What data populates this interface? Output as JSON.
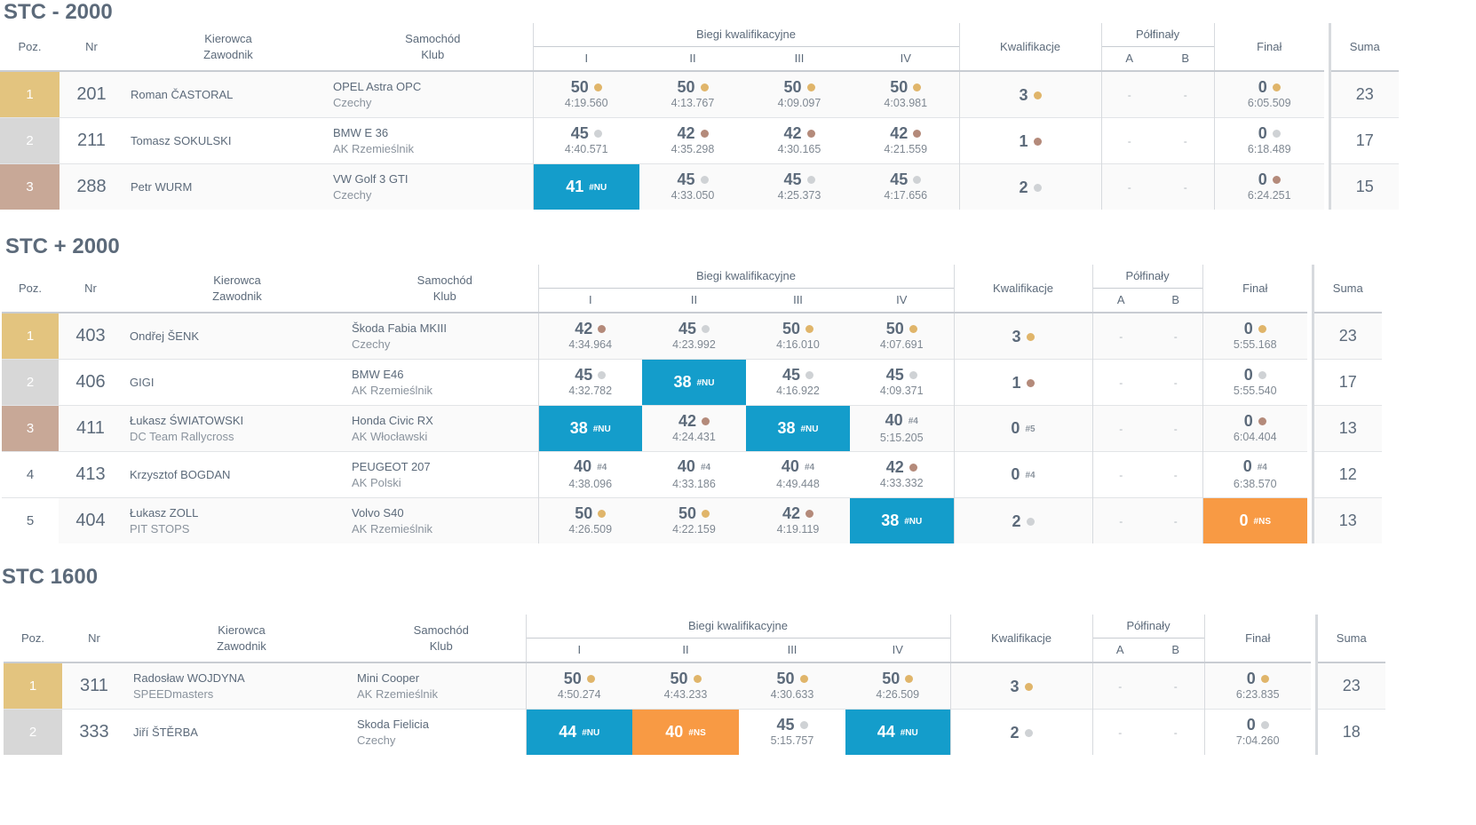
{
  "headers": {
    "poz": "Poz.",
    "nr": "Nr",
    "driver1": "Kierowca",
    "driver2": "Zawodnik",
    "car1": "Samochód",
    "car2": "Klub",
    "heats": "Biegi kwalifikacyjne",
    "heat_cols": [
      "I",
      "II",
      "III",
      "IV"
    ],
    "qual": "Kwalifikacje",
    "semi": "Półfinały",
    "semi_cols": [
      "A",
      "B"
    ],
    "final": "Finał",
    "sum": "Suma"
  },
  "sections": [
    {
      "title": "STC - 2000",
      "rows": [
        {
          "poz": "1",
          "cls": "p1",
          "nr": "201",
          "driver": "Roman ČASTORAL",
          "driver2": "",
          "car": "OPEL Astra OPC",
          "club": "Czechy",
          "heats": [
            {
              "p": "50",
              "t": "4:19.560",
              "m": "gold"
            },
            {
              "p": "50",
              "t": "4:13.767",
              "m": "gold"
            },
            {
              "p": "50",
              "t": "4:09.097",
              "m": "gold"
            },
            {
              "p": "50",
              "t": "4:03.981",
              "m": "gold"
            }
          ],
          "qual": {
            "p": "3",
            "m": "gold"
          },
          "semiA": "-",
          "semiB": "-",
          "final": {
            "p": "0",
            "t": "6:05.509",
            "m": "gold"
          },
          "sum": "23"
        },
        {
          "poz": "2",
          "cls": "p2",
          "nr": "211",
          "driver": "Tomasz SOKULSKI",
          "driver2": "",
          "car": "BMW E 36",
          "club": "AK Rzemieślnik",
          "heats": [
            {
              "p": "45",
              "t": "4:40.571",
              "m": "silver"
            },
            {
              "p": "42",
              "t": "4:35.298",
              "m": "bronze"
            },
            {
              "p": "42",
              "t": "4:30.165",
              "m": "bronze"
            },
            {
              "p": "42",
              "t": "4:21.559",
              "m": "bronze"
            }
          ],
          "qual": {
            "p": "1",
            "m": "bronze"
          },
          "semiA": "-",
          "semiB": "-",
          "final": {
            "p": "0",
            "t": "6:18.489",
            "m": "silver"
          },
          "sum": "17"
        },
        {
          "poz": "3",
          "cls": "p3",
          "nr": "288",
          "driver": "Petr WURM",
          "driver2": "",
          "car": "VW Golf 3 GTI",
          "club": "Czechy",
          "heats": [
            {
              "p": "41",
              "t": "",
              "tag": "#NU",
              "hl": "nu"
            },
            {
              "p": "45",
              "t": "4:33.050",
              "m": "silver"
            },
            {
              "p": "45",
              "t": "4:25.373",
              "m": "silver"
            },
            {
              "p": "45",
              "t": "4:17.656",
              "m": "silver"
            }
          ],
          "qual": {
            "p": "2",
            "m": "silver"
          },
          "semiA": "-",
          "semiB": "-",
          "final": {
            "p": "0",
            "t": "6:24.251",
            "m": "bronze"
          },
          "sum": "15"
        }
      ]
    },
    {
      "title": "STC + 2000",
      "rows": [
        {
          "poz": "1",
          "cls": "p1",
          "nr": "403",
          "driver": "Ondřej ŠENK",
          "driver2": "",
          "car": "Škoda Fabia MKIII",
          "club": "Czechy",
          "heats": [
            {
              "p": "42",
              "t": "4:34.964",
              "m": "bronze"
            },
            {
              "p": "45",
              "t": "4:23.992",
              "m": "silver"
            },
            {
              "p": "50",
              "t": "4:16.010",
              "m": "gold"
            },
            {
              "p": "50",
              "t": "4:07.691",
              "m": "gold"
            }
          ],
          "qual": {
            "p": "3",
            "m": "gold"
          },
          "semiA": "-",
          "semiB": "-",
          "final": {
            "p": "0",
            "t": "5:55.168",
            "m": "gold"
          },
          "sum": "23"
        },
        {
          "poz": "2",
          "cls": "p2",
          "nr": "406",
          "driver": "GIGI",
          "driver2": "",
          "car": "BMW E46",
          "club": "AK Rzemieślnik",
          "heats": [
            {
              "p": "45",
              "t": "4:32.782",
              "m": "silver"
            },
            {
              "p": "38",
              "t": "",
              "tag": "#NU",
              "hl": "nu"
            },
            {
              "p": "45",
              "t": "4:16.922",
              "m": "silver"
            },
            {
              "p": "45",
              "t": "4:09.371",
              "m": "silver"
            }
          ],
          "qual": {
            "p": "1",
            "m": "bronze"
          },
          "semiA": "-",
          "semiB": "-",
          "final": {
            "p": "0",
            "t": "5:55.540",
            "m": "silver"
          },
          "sum": "17"
        },
        {
          "poz": "3",
          "cls": "p3",
          "nr": "411",
          "driver": "Łukasz ŚWIATOWSKI",
          "driver2": "DC Team Rallycross",
          "car": "Honda Civic RX",
          "club": "AK Włocławski",
          "heats": [
            {
              "p": "38",
              "t": "",
              "tag": "#NU",
              "hl": "nu"
            },
            {
              "p": "42",
              "t": "4:24.431",
              "m": "bronze"
            },
            {
              "p": "38",
              "t": "",
              "tag": "#NU",
              "hl": "nu"
            },
            {
              "p": "40",
              "t": "5:15.205",
              "tag": "#4"
            }
          ],
          "qual": {
            "p": "0",
            "tag": "#5"
          },
          "semiA": "-",
          "semiB": "-",
          "final": {
            "p": "0",
            "t": "6:04.404",
            "m": "bronze"
          },
          "sum": "13"
        },
        {
          "poz": "4",
          "cls": "pn",
          "nr": "413",
          "driver": "Krzysztof BOGDAN",
          "driver2": "",
          "car": "PEUGEOT 207",
          "club": "AK Polski",
          "heats": [
            {
              "p": "40",
              "t": "4:38.096",
              "tag": "#4"
            },
            {
              "p": "40",
              "t": "4:33.186",
              "tag": "#4"
            },
            {
              "p": "40",
              "t": "4:49.448",
              "tag": "#4"
            },
            {
              "p": "42",
              "t": "4:33.332",
              "m": "bronze"
            }
          ],
          "qual": {
            "p": "0",
            "tag": "#4"
          },
          "semiA": "-",
          "semiB": "-",
          "final": {
            "p": "0",
            "t": "6:38.570",
            "tag": "#4"
          },
          "sum": "12"
        },
        {
          "poz": "5",
          "cls": "pn",
          "nr": "404",
          "driver": "Łukasz ZOLL",
          "driver2": "PIT STOPS",
          "car": "Volvo S40",
          "club": "AK Rzemieślnik",
          "heats": [
            {
              "p": "50",
              "t": "4:26.509",
              "m": "gold"
            },
            {
              "p": "50",
              "t": "4:22.159",
              "m": "gold"
            },
            {
              "p": "42",
              "t": "4:19.119",
              "m": "bronze"
            },
            {
              "p": "38",
              "t": "",
              "tag": "#NU",
              "hl": "nu"
            }
          ],
          "qual": {
            "p": "2",
            "m": "silver"
          },
          "semiA": "-",
          "semiB": "-",
          "final": {
            "p": "0",
            "t": "",
            "tag": "#NS",
            "hl": "ns"
          },
          "sum": "13"
        }
      ]
    },
    {
      "title": "STC 1600",
      "rows": [
        {
          "poz": "1",
          "cls": "p1",
          "nr": "311",
          "driver": "Radosław WOJDYNA",
          "driver2": "SPEEDmasters",
          "car": "Mini Cooper",
          "club": "AK Rzemieślnik",
          "heats": [
            {
              "p": "50",
              "t": "4:50.274",
              "m": "gold"
            },
            {
              "p": "50",
              "t": "4:43.233",
              "m": "gold"
            },
            {
              "p": "50",
              "t": "4:30.633",
              "m": "gold"
            },
            {
              "p": "50",
              "t": "4:26.509",
              "m": "gold"
            }
          ],
          "qual": {
            "p": "3",
            "m": "gold"
          },
          "semiA": "-",
          "semiB": "-",
          "final": {
            "p": "0",
            "t": "6:23.835",
            "m": "gold"
          },
          "sum": "23"
        },
        {
          "poz": "2",
          "cls": "p2",
          "nr": "333",
          "driver": "Jiří ŠTĚRBA",
          "driver2": "",
          "car": "Skoda Fielicia",
          "club": "Czechy",
          "heats": [
            {
              "p": "44",
              "t": "",
              "tag": "#NU",
              "hl": "nu"
            },
            {
              "p": "40",
              "t": "",
              "tag": "#NS",
              "hl": "ns"
            },
            {
              "p": "45",
              "t": "5:15.757",
              "m": "silver"
            },
            {
              "p": "44",
              "t": "",
              "tag": "#NU",
              "hl": "nu"
            }
          ],
          "qual": {
            "p": "2",
            "m": "silver"
          },
          "semiA": "-",
          "semiB": "-",
          "final": {
            "p": "0",
            "t": "7:04.260",
            "m": "silver"
          },
          "sum": "18"
        }
      ]
    }
  ]
}
